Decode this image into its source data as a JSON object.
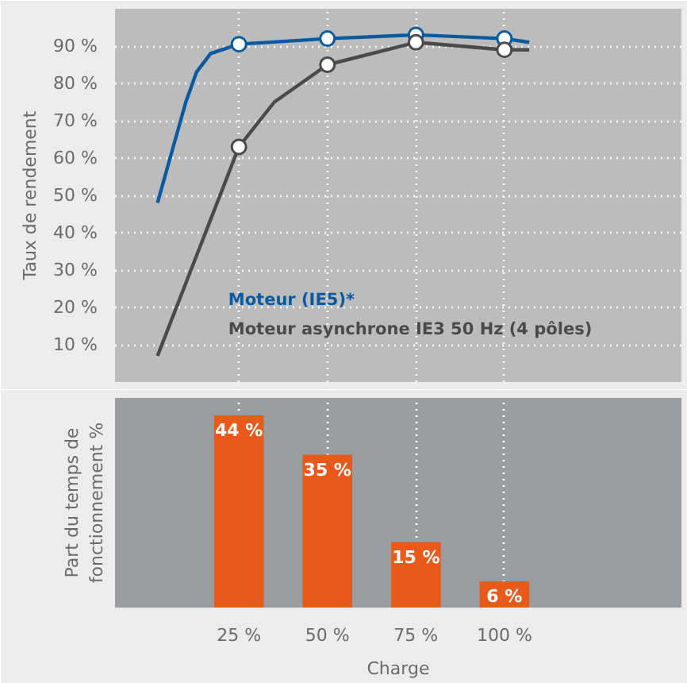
{
  "chart_data": [
    {
      "type": "line",
      "ylabel": "Taux de rendement",
      "xlim": [
        -10,
        150
      ],
      "ylim": [
        0,
        100
      ],
      "xticks": [
        25,
        50,
        75,
        100
      ],
      "yticks": [
        {
          "value": 10,
          "label": "10 %"
        },
        {
          "value": 20,
          "label": "20 %"
        },
        {
          "value": 30,
          "label": "30 %"
        },
        {
          "value": 40,
          "label": "40 %"
        },
        {
          "value": 50,
          "label": "50 %"
        },
        {
          "value": 60,
          "label": "60 %"
        },
        {
          "value": 70,
          "label": "70 %"
        },
        {
          "value": 80,
          "label": "80 %"
        },
        {
          "value": 90,
          "label": "90 %"
        }
      ],
      "tick_labels": "y",
      "grid": true,
      "legend": "bottom",
      "series": [
        {
          "name": "Moteur (IE5)*",
          "color": "#0a5aa0",
          "x": [
            2,
            10,
            13,
            17,
            25,
            50,
            75,
            100,
            107
          ],
          "values": [
            48,
            75,
            83,
            88,
            90.5,
            92,
            93,
            92,
            91
          ]
        },
        {
          "name": "Moteur asynchrone IE3 50 Hz (4 pôles)",
          "color": "#4a4a4a",
          "x": [
            2,
            25,
            35,
            50,
            75,
            100,
            107
          ],
          "values": [
            7,
            63,
            75,
            85,
            91,
            89,
            89
          ]
        },
        {
          "type": "scatter",
          "marker": "circle",
          "color": "#0a5aa0",
          "x": [
            25,
            50,
            75,
            100
          ],
          "values": [
            90.5,
            92,
            93,
            92
          ]
        },
        {
          "type": "scatter",
          "marker": "circle",
          "color": "#4a4a4a",
          "x": [
            25,
            50,
            75,
            100
          ],
          "values": [
            63,
            85,
            91,
            89
          ]
        }
      ]
    },
    {
      "type": "bar",
      "ylabel": "Part du temps de\nfonctionnement %",
      "xlabel": "Charge",
      "xlim": [
        -10,
        150
      ],
      "ylim": [
        0,
        48
      ],
      "x": [
        25,
        50,
        75,
        100
      ],
      "values": [
        44,
        35,
        15,
        6
      ],
      "color": "#e8591a",
      "value_labels": [
        "44 %",
        "35 %",
        "15 %",
        "6 %"
      ],
      "xticks": [
        {
          "value": 25,
          "label": "25 %"
        },
        {
          "value": 50,
          "label": "50 %"
        },
        {
          "value": 75,
          "label": "75 %"
        },
        {
          "value": 100,
          "label": "100 %"
        }
      ],
      "tick_labels": "x",
      "grid": "x"
    }
  ]
}
